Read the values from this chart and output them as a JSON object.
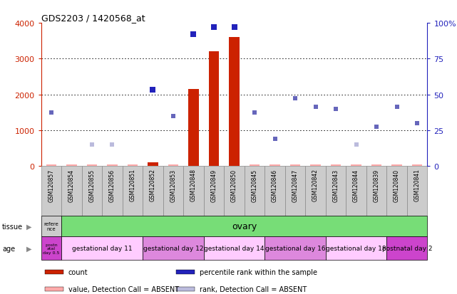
{
  "title": "GDS2203 / 1420568_at",
  "samples": [
    "GSM120857",
    "GSM120854",
    "GSM120855",
    "GSM120856",
    "GSM120851",
    "GSM120852",
    "GSM120853",
    "GSM120848",
    "GSM120849",
    "GSM120850",
    "GSM120845",
    "GSM120846",
    "GSM120847",
    "GSM120842",
    "GSM120843",
    "GSM120844",
    "GSM120839",
    "GSM120840",
    "GSM120841"
  ],
  "count_values": [
    30,
    30,
    30,
    30,
    30,
    100,
    30,
    2150,
    3200,
    3600,
    30,
    30,
    30,
    30,
    30,
    30,
    30,
    30,
    30
  ],
  "count_absent": [
    true,
    true,
    true,
    true,
    true,
    false,
    true,
    false,
    false,
    false,
    true,
    true,
    true,
    true,
    true,
    true,
    true,
    true,
    true
  ],
  "rank_values": [
    1500,
    null,
    600,
    600,
    null,
    2100,
    1400,
    null,
    null,
    null,
    1500,
    750,
    1900,
    1650,
    1600,
    600,
    1100,
    1650,
    1200
  ],
  "rank_absent": [
    false,
    null,
    true,
    true,
    null,
    false,
    false,
    null,
    null,
    null,
    false,
    false,
    false,
    false,
    false,
    true,
    false,
    false,
    false
  ],
  "percentile_rank": [
    null,
    null,
    null,
    null,
    null,
    53,
    null,
    92,
    97,
    97,
    null,
    null,
    null,
    null,
    null,
    null,
    null,
    null,
    null
  ],
  "ylim_left": [
    0,
    4000
  ],
  "ylim_right": [
    0,
    100
  ],
  "yticks_left": [
    0,
    1000,
    2000,
    3000,
    4000
  ],
  "yticks_right": [
    0,
    25,
    50,
    75,
    100
  ],
  "bar_color": "#cc2200",
  "bar_absent_color": "#ffaaaa",
  "rank_color": "#6666bb",
  "rank_absent_color": "#bbbbdd",
  "percentile_color": "#2222bb",
  "grid_color": "#000000",
  "tissue_label": "tissue",
  "age_label": "age",
  "reference_label": "refere\nnce",
  "postnatal_label": "postn\natal\nday 0.5",
  "tissue_color": "#77dd77",
  "tissue_ref_color": "#cccccc",
  "tissue_ovary": "ovary",
  "age_groups": [
    {
      "label": "gestational day 11",
      "start": 1,
      "end": 5,
      "color": "#ffccff"
    },
    {
      "label": "gestational day 12",
      "start": 5,
      "end": 8,
      "color": "#dd88dd"
    },
    {
      "label": "gestational day 14",
      "start": 8,
      "end": 11,
      "color": "#ffccff"
    },
    {
      "label": "gestational day 16",
      "start": 11,
      "end": 14,
      "color": "#dd88dd"
    },
    {
      "label": "gestational day 18",
      "start": 14,
      "end": 17,
      "color": "#ffccff"
    },
    {
      "label": "postnatal day 2",
      "start": 17,
      "end": 19,
      "color": "#cc44cc"
    }
  ],
  "legend_items": [
    {
      "label": "count",
      "color": "#cc2200"
    },
    {
      "label": "percentile rank within the sample",
      "color": "#2222bb"
    },
    {
      "label": "value, Detection Call = ABSENT",
      "color": "#ffaaaa"
    },
    {
      "label": "rank, Detection Call = ABSENT",
      "color": "#bbbbdd"
    }
  ],
  "bg_color": "#ffffff",
  "plot_bg_color": "#ffffff",
  "left_label_color": "#cc2200",
  "right_label_color": "#2222bb",
  "sample_box_color": "#cccccc",
  "sample_box_edge": "#888888"
}
